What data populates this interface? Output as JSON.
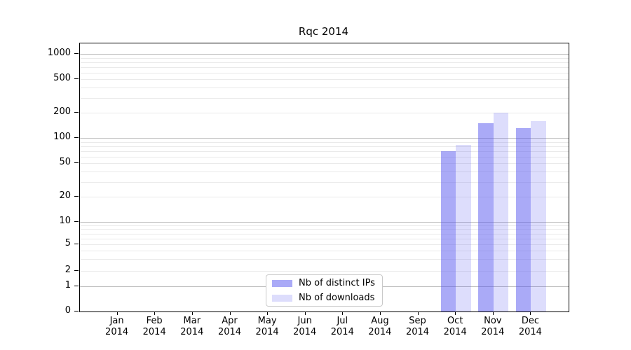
{
  "chart_data": {
    "type": "bar",
    "title": "Rqc 2014",
    "x_year": "2014",
    "categories": [
      "Jan",
      "Feb",
      "Mar",
      "Apr",
      "May",
      "Jun",
      "Jul",
      "Aug",
      "Sep",
      "Oct",
      "Nov",
      "Dec"
    ],
    "series": [
      {
        "name": "Nb of distinct IPs",
        "color": "rgba(85,85,240,0.5)",
        "values": [
          null,
          null,
          null,
          null,
          null,
          null,
          null,
          null,
          null,
          70,
          150,
          130
        ]
      },
      {
        "name": "Nb of downloads",
        "color": "rgba(85,85,240,0.2)",
        "values": [
          null,
          null,
          null,
          null,
          null,
          null,
          null,
          null,
          null,
          82,
          200,
          158
        ]
      }
    ],
    "y_scale": "symlog",
    "y_ticks": [
      0,
      1,
      2,
      5,
      10,
      20,
      50,
      100,
      200,
      500,
      1000
    ],
    "y_major_gridlines": [
      1,
      10,
      100,
      1000
    ],
    "y_minor_gridlines_rule": "integer multiples 2-9 of each decade",
    "ylim": [
      0,
      1300
    ],
    "xlabel": "",
    "ylabel": "",
    "grid": "horizontal",
    "legend_position": "inside bottom-center"
  }
}
